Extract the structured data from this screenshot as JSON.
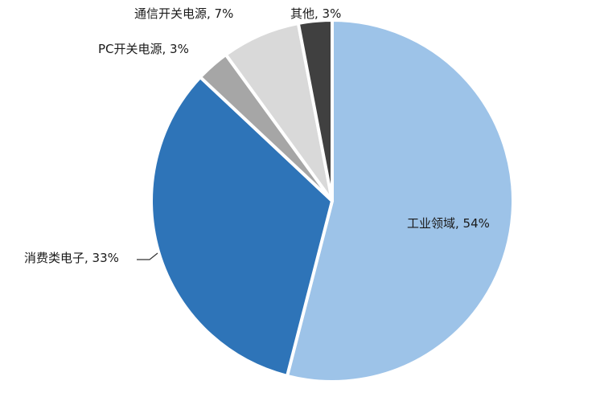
{
  "chart_data": {
    "type": "pie",
    "title": "",
    "legend": "none",
    "slices": [
      {
        "label": "工业领域",
        "value": 54,
        "display": "工业领域, 54%",
        "color": "#9dc3e8"
      },
      {
        "label": "消费类电子",
        "value": 33,
        "display": "消费类电子, 33%",
        "color": "#2e74b8"
      },
      {
        "label": "PC开关电源",
        "value": 3,
        "display": "PC开关电源, 3%",
        "color": "#a6a6a6"
      },
      {
        "label": "通信开关电源",
        "value": 7,
        "display": "通信开关电源, 7%",
        "color": "#d9d9d9"
      },
      {
        "label": "其他",
        "value": 3,
        "display": "其他, 3%",
        "color": "#404040"
      }
    ]
  }
}
